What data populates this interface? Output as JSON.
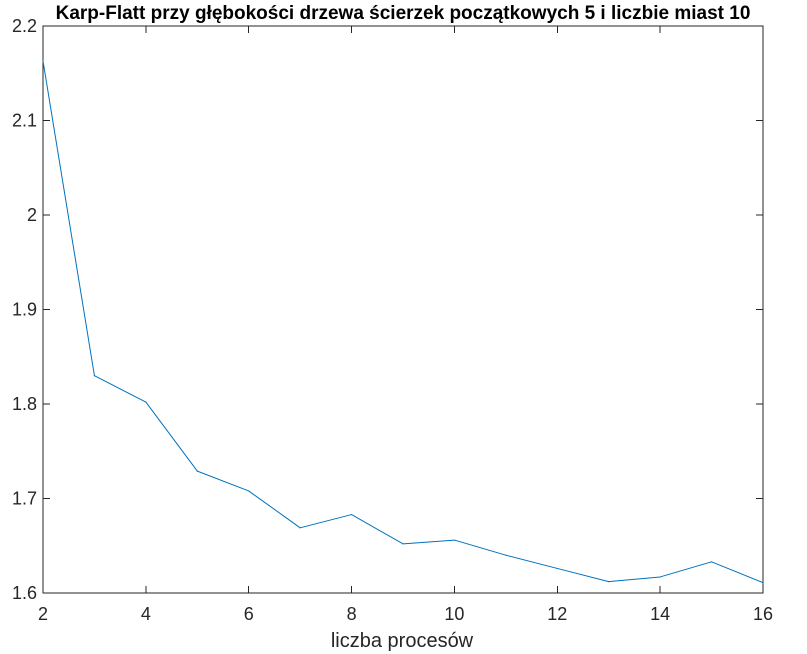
{
  "chart_data": {
    "type": "line",
    "title": "Karp-Flatt przy głębokości drzewa ścierzek początkowych 5 i liczbie miast 10",
    "xlabel": "liczba procesów",
    "ylabel": "",
    "xlim": [
      2,
      16
    ],
    "ylim": [
      1.6,
      2.2
    ],
    "xticks": [
      2,
      4,
      6,
      8,
      10,
      12,
      14,
      16
    ],
    "yticks": [
      1.6,
      1.7,
      1.8,
      1.9,
      2,
      2.1,
      2.2
    ],
    "xtick_labels": [
      "2",
      "4",
      "6",
      "8",
      "10",
      "12",
      "14",
      "16"
    ],
    "ytick_labels": [
      "1.6",
      "1.7",
      "1.8",
      "1.9",
      "2",
      "2.1",
      "2.2"
    ],
    "grid": false,
    "series": [
      {
        "color": "#0072bd",
        "x": [
          2,
          3,
          4,
          5,
          6,
          7,
          8,
          9,
          10,
          11,
          12,
          13,
          14,
          15,
          16
        ],
        "y": [
          2.163,
          1.83,
          1.802,
          1.729,
          1.708,
          1.669,
          1.683,
          1.652,
          1.656,
          1.64,
          1.626,
          1.612,
          1.617,
          1.633,
          1.611
        ]
      }
    ]
  }
}
